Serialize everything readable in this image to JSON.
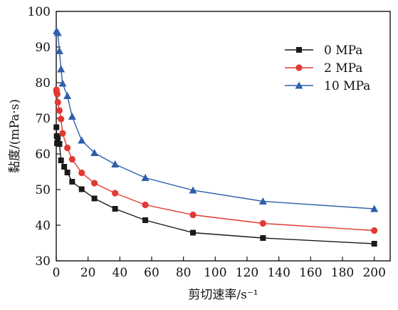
{
  "chart_data": {
    "type": "line",
    "title": "",
    "xlabel": "剪切速率/s⁻¹",
    "ylabel": "黏度/(mPa·s)",
    "xlim": [
      0,
      210
    ],
    "ylim": [
      30,
      100
    ],
    "xticks": [
      0,
      20,
      40,
      60,
      80,
      100,
      120,
      140,
      160,
      180,
      200
    ],
    "yticks": [
      30,
      40,
      50,
      60,
      70,
      80,
      90,
      100
    ],
    "grid": false,
    "legend_position": "top-right",
    "series": [
      {
        "name": "0 MPa",
        "color": "#1a1a1a",
        "marker": "square",
        "x": [
          0.1,
          0.3,
          0.5,
          1,
          2,
          3,
          5,
          7,
          10,
          16,
          24,
          37,
          56,
          86,
          130,
          200
        ],
        "y": [
          67.5,
          65.0,
          63.0,
          64.5,
          62.8,
          58.2,
          56.4,
          54.8,
          52.2,
          50.1,
          47.5,
          44.6,
          41.4,
          37.9,
          36.4,
          34.8
        ]
      },
      {
        "name": "2 MPa",
        "color": "#e03a32",
        "marker": "circle",
        "x": [
          0.1,
          0.3,
          0.6,
          1,
          2,
          3,
          4,
          7,
          10,
          16,
          24,
          37,
          56,
          86,
          130,
          200
        ],
        "y": [
          78.0,
          77.3,
          76.8,
          74.5,
          72.2,
          69.8,
          65.8,
          61.7,
          58.5,
          54.7,
          51.8,
          49.0,
          45.7,
          42.9,
          40.5,
          38.5
        ]
      },
      {
        "name": "10 MPa",
        "color": "#2e5fab",
        "marker": "triangle",
        "x": [
          0.2,
          1,
          2,
          3,
          4,
          7,
          10,
          16,
          24,
          37,
          56,
          86,
          130,
          200
        ],
        "y": [
          94.5,
          94.0,
          88.9,
          83.8,
          79.8,
          76.3,
          70.5,
          63.8,
          60.3,
          57.1,
          53.3,
          49.8,
          46.7,
          44.6
        ]
      }
    ]
  }
}
